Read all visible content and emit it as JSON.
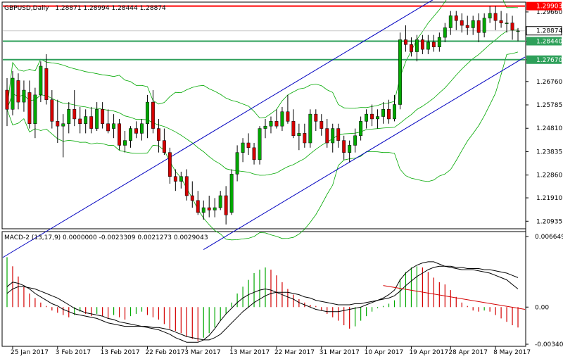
{
  "header": {
    "symbol": "GBPUSD,Daily",
    "ohlc": "1.28871 1.28994 1.28444 1.28874"
  },
  "macd_header": "MACD-2 (13,17,9) 0.0000000 -0.0023309 0.0021273 0.0029043",
  "colors": {
    "bull": "#00a800",
    "bear": "#d40000",
    "bollinger": "#00a800",
    "channel": "#0000c0",
    "resistance": "#ff0000",
    "support": "#2ea05a",
    "macd_line": "#000000",
    "trend_line": "#d40000"
  },
  "chart_data": [
    {
      "type": "candlestick",
      "title": "GBPUSD,Daily",
      "ylim": [
        1.2065,
        1.3004
      ],
      "y_ticks": [
        "1.29660",
        "1.28440",
        "1.27670",
        "1.26760",
        "1.25785",
        "1.24810",
        "1.23835",
        "1.22860",
        "1.21910",
        "1.20935"
      ],
      "x_tick_labels": [
        "25 Jan 2017",
        "3 Feb 2017",
        "13 Feb 2017",
        "22 Feb 2017",
        "3 Mar 2017",
        "13 Mar 2017",
        "22 Mar 2017",
        "31 Mar 2017",
        "10 Apr 2017",
        "19 Apr 2017",
        "28 Apr 2017",
        "8 May 2017"
      ],
      "level_labels": [
        {
          "value": 1.29903,
          "label": "1.29903",
          "kind": "resistance"
        },
        {
          "value": 1.28874,
          "label": "1.28874",
          "kind": "current"
        },
        {
          "value": 1.2844,
          "label": "1.28440",
          "kind": "support"
        },
        {
          "value": 1.2767,
          "label": "1.27670",
          "kind": "support"
        }
      ],
      "candles": [
        [
          1.264,
          1.269,
          1.249,
          1.256
        ],
        [
          1.256,
          1.272,
          1.2535,
          1.269
        ],
        [
          1.268,
          1.271,
          1.256,
          1.259
        ],
        [
          1.259,
          1.268,
          1.255,
          1.264
        ],
        [
          1.263,
          1.268,
          1.248,
          1.25
        ],
        [
          1.25,
          1.265,
          1.244,
          1.262
        ],
        [
          1.262,
          1.276,
          1.259,
          1.274
        ],
        [
          1.273,
          1.279,
          1.258,
          1.26
        ],
        [
          1.26,
          1.264,
          1.248,
          1.251
        ],
        [
          1.251,
          1.26,
          1.242,
          1.249
        ],
        [
          1.249,
          1.254,
          1.236,
          1.25
        ],
        [
          1.25,
          1.259,
          1.246,
          1.256
        ],
        [
          1.256,
          1.264,
          1.249,
          1.252
        ],
        [
          1.252,
          1.257,
          1.246,
          1.25
        ],
        [
          1.25,
          1.256,
          1.246,
          1.253
        ],
        [
          1.253,
          1.257,
          1.246,
          1.248
        ],
        [
          1.248,
          1.259,
          1.247,
          1.256
        ],
        [
          1.256,
          1.259,
          1.248,
          1.25
        ],
        [
          1.25,
          1.256,
          1.246,
          1.247
        ],
        [
          1.248,
          1.254,
          1.244,
          1.25
        ],
        [
          1.25,
          1.252,
          1.239,
          1.241
        ],
        [
          1.241,
          1.247,
          1.238,
          1.243
        ],
        [
          1.243,
          1.249,
          1.24,
          1.248
        ],
        [
          1.248,
          1.251,
          1.244,
          1.246
        ],
        [
          1.246,
          1.252,
          1.243,
          1.25
        ],
        [
          1.25,
          1.262,
          1.244,
          1.259
        ],
        [
          1.259,
          1.264,
          1.246,
          1.248
        ],
        [
          1.248,
          1.252,
          1.238,
          1.243
        ],
        [
          1.243,
          1.248,
          1.237,
          1.238
        ],
        [
          1.238,
          1.24,
          1.225,
          1.228
        ],
        [
          1.228,
          1.231,
          1.222,
          1.226
        ],
        [
          1.226,
          1.23,
          1.223,
          1.228
        ],
        [
          1.228,
          1.231,
          1.218,
          1.22
        ],
        [
          1.22,
          1.226,
          1.215,
          1.218
        ],
        [
          1.218,
          1.222,
          1.212,
          1.213
        ],
        [
          1.213,
          1.218,
          1.21,
          1.215
        ],
        [
          1.215,
          1.22,
          1.211,
          1.214
        ],
        [
          1.214,
          1.219,
          1.211,
          1.215
        ],
        [
          1.215,
          1.222,
          1.214,
          1.22
        ],
        [
          1.22,
          1.224,
          1.208,
          1.212
        ],
        [
          1.213,
          1.231,
          1.212,
          1.229
        ],
        [
          1.229,
          1.241,
          1.226,
          1.238
        ],
        [
          1.238,
          1.244,
          1.234,
          1.242
        ],
        [
          1.242,
          1.246,
          1.237,
          1.24
        ],
        [
          1.24,
          1.242,
          1.233,
          1.235
        ],
        [
          1.235,
          1.249,
          1.233,
          1.248
        ],
        [
          1.248,
          1.252,
          1.244,
          1.249
        ],
        [
          1.249,
          1.253,
          1.246,
          1.251
        ],
        [
          1.251,
          1.256,
          1.248,
          1.249
        ],
        [
          1.249,
          1.257,
          1.247,
          1.255
        ],
        [
          1.255,
          1.262,
          1.25,
          1.251
        ],
        [
          1.251,
          1.256,
          1.244,
          1.245
        ],
        [
          1.245,
          1.25,
          1.239,
          1.246
        ],
        [
          1.246,
          1.25,
          1.24,
          1.242
        ],
        [
          1.242,
          1.256,
          1.24,
          1.254
        ],
        [
          1.254,
          1.256,
          1.247,
          1.251
        ],
        [
          1.251,
          1.254,
          1.245,
          1.248
        ],
        [
          1.248,
          1.252,
          1.24,
          1.242
        ],
        [
          1.242,
          1.25,
          1.238,
          1.248
        ],
        [
          1.248,
          1.25,
          1.24,
          1.243
        ],
        [
          1.243,
          1.245,
          1.235,
          1.238
        ],
        [
          1.238,
          1.243,
          1.234,
          1.241
        ],
        [
          1.241,
          1.248,
          1.238,
          1.245
        ],
        [
          1.245,
          1.253,
          1.243,
          1.251
        ],
        [
          1.251,
          1.256,
          1.248,
          1.254
        ],
        [
          1.254,
          1.258,
          1.249,
          1.252
        ],
        [
          1.252,
          1.256,
          1.248,
          1.253
        ],
        [
          1.253,
          1.259,
          1.25,
          1.256
        ],
        [
          1.256,
          1.26,
          1.25,
          1.252
        ],
        [
          1.252,
          1.262,
          1.251,
          1.258
        ],
        [
          1.258,
          1.288,
          1.256,
          1.285
        ],
        [
          1.285,
          1.291,
          1.28,
          1.283
        ],
        [
          1.283,
          1.286,
          1.278,
          1.28
        ],
        [
          1.28,
          1.287,
          1.276,
          1.285
        ],
        [
          1.285,
          1.287,
          1.279,
          1.281
        ],
        [
          1.281,
          1.287,
          1.279,
          1.284
        ],
        [
          1.284,
          1.287,
          1.28,
          1.282
        ],
        [
          1.282,
          1.288,
          1.28,
          1.286
        ],
        [
          1.286,
          1.292,
          1.284,
          1.29
        ],
        [
          1.29,
          1.297,
          1.287,
          1.295
        ],
        [
          1.295,
          1.297,
          1.289,
          1.293
        ],
        [
          1.293,
          1.296,
          1.288,
          1.291
        ],
        [
          1.291,
          1.295,
          1.287,
          1.29
        ],
        [
          1.29,
          1.295,
          1.287,
          1.293
        ],
        [
          1.293,
          1.296,
          1.284,
          1.288
        ],
        [
          1.288,
          1.296,
          1.286,
          1.294
        ],
        [
          1.294,
          1.299,
          1.292,
          1.296
        ],
        [
          1.296,
          1.299,
          1.289,
          1.293
        ],
        [
          1.293,
          1.297,
          1.29,
          1.292
        ],
        [
          1.292,
          1.296,
          1.288,
          1.292
        ],
        [
          1.292,
          1.295,
          1.285,
          1.289
        ],
        [
          1.2887,
          1.2899,
          1.2844,
          1.2887
        ]
      ]
    },
    {
      "type": "histogram+line",
      "title": "MACD-2 (13,17,9)",
      "ylim": [
        -0.0034,
        0.0066
      ],
      "y_ticks": [
        "0.006649",
        "0.00",
        "-0.003402"
      ],
      "histogram": [
        0.0044,
        0.0036,
        0.0027,
        0.0018,
        0.0012,
        0.0008,
        0.0004,
        0.0001,
        -0.0003,
        -0.0005,
        -0.0007,
        -0.0009,
        -0.0007,
        -0.0004,
        -0.0006,
        -0.0008,
        -0.0006,
        -0.0008,
        -0.001,
        -0.0007,
        -0.0009,
        -0.0011,
        -0.0008,
        -0.0006,
        -0.0004,
        -0.0007,
        -0.0009,
        -0.0011,
        -0.0015,
        -0.0019,
        -0.0021,
        -0.0023,
        -0.0026,
        -0.0028,
        -0.003,
        -0.0027,
        -0.0023,
        -0.0018,
        -0.0012,
        -0.0006,
        0.0004,
        0.0012,
        0.0018,
        0.0024,
        0.003,
        0.0033,
        0.0035,
        0.0033,
        0.0028,
        0.0022,
        0.0016,
        0.0011,
        0.0007,
        0.0004,
        0.0002,
        0.0001,
        -0.0003,
        -0.0006,
        -0.0009,
        -0.0012,
        -0.0016,
        -0.0019,
        -0.0017,
        -0.0012,
        -0.0008,
        -0.0004,
        -0.0001,
        0.0001,
        0.0003,
        0.0006,
        0.0025,
        0.0031,
        0.0035,
        0.0036,
        0.0035,
        0.0031,
        0.0026,
        0.0022,
        0.002,
        0.0015,
        0.0009,
        0.0004,
        0.0001,
        -0.0003,
        -0.0004,
        -0.0003,
        -0.0004,
        -0.0007,
        -0.001,
        -0.0013,
        -0.0016,
        -0.0018
      ],
      "macd_line": [
        0.0018,
        0.0022,
        0.0021,
        0.0019,
        0.0016,
        0.0012,
        0.0009,
        0.0006,
        0.0003,
        0.0001,
        -0.0002,
        -0.0004,
        -0.0006,
        -0.0007,
        -0.0008,
        -0.0009,
        -0.001,
        -0.0012,
        -0.0014,
        -0.0015,
        -0.0016,
        -0.0017,
        -0.0017,
        -0.0017,
        -0.0017,
        -0.0018,
        -0.0019,
        -0.002,
        -0.0022,
        -0.0024,
        -0.0027,
        -0.0029,
        -0.0031,
        -0.0031,
        -0.0031,
        -0.0029,
        -0.0025,
        -0.0019,
        -0.0012,
        -0.0006,
        -0.0001,
        0.0004,
        0.0008,
        0.0011,
        0.0013,
        0.0015,
        0.0016,
        0.0015,
        0.0013,
        0.0011,
        0.0009,
        0.0007,
        0.0004,
        0.0002,
        0.0,
        -0.0002,
        -0.0003,
        -0.0004,
        -0.0004,
        -0.0004,
        -0.0003,
        -0.0002,
        -0.0001,
        0.0,
        0.0002,
        0.0004,
        0.0006,
        0.0008,
        0.0011,
        0.0015,
        0.0024,
        0.003,
        0.0034,
        0.0037,
        0.0039,
        0.004,
        0.004,
        0.0038,
        0.0036,
        0.0035,
        0.0034,
        0.0033,
        0.0033,
        0.0033,
        0.0032,
        0.0031,
        0.003,
        0.0028,
        0.0026,
        0.0024,
        0.002,
        0.0016
      ],
      "signal_line": [
        0.0012,
        0.0016,
        0.0018,
        0.0018,
        0.0017,
        0.0016,
        0.0014,
        0.0012,
        0.001,
        0.0008,
        0.0005,
        0.0002,
        -0.0001,
        -0.0003,
        -0.0005,
        -0.0006,
        -0.0007,
        -0.0008,
        -0.001,
        -0.0011,
        -0.0013,
        -0.0014,
        -0.0015,
        -0.0016,
        -0.0017,
        -0.0017,
        -0.0018,
        -0.0018,
        -0.0019,
        -0.002,
        -0.0022,
        -0.0024,
        -0.0026,
        -0.0027,
        -0.0028,
        -0.0029,
        -0.0029,
        -0.0027,
        -0.0024,
        -0.0019,
        -0.0014,
        -0.0009,
        -0.0004,
        0.0,
        0.0004,
        0.0007,
        0.001,
        0.0012,
        0.0013,
        0.0013,
        0.0013,
        0.0012,
        0.0011,
        0.0009,
        0.0008,
        0.0006,
        0.0005,
        0.0004,
        0.0003,
        0.0002,
        0.0002,
        0.0002,
        0.0003,
        0.0003,
        0.0004,
        0.0005,
        0.0006,
        0.0007,
        0.0008,
        0.001,
        0.0014,
        0.0019,
        0.0023,
        0.0027,
        0.003,
        0.0033,
        0.0035,
        0.0036,
        0.0036,
        0.0036,
        0.0035,
        0.0035,
        0.0034,
        0.0034,
        0.0034,
        0.0033,
        0.0033,
        0.0032,
        0.0031,
        0.003,
        0.0028,
        0.0026
      ]
    }
  ]
}
